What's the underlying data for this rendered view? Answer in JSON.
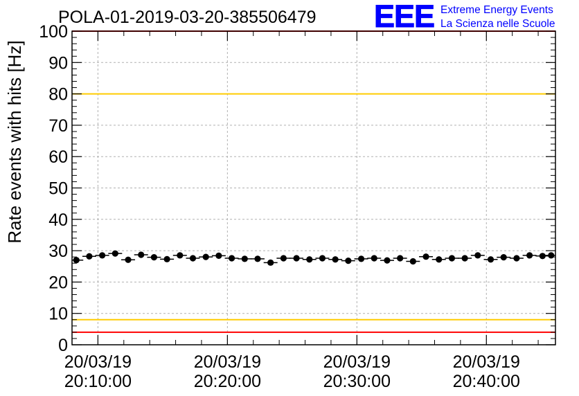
{
  "chart_data": {
    "type": "scatter",
    "title": "POLA-01-2019-03-20-385506479",
    "xlabel": "",
    "ylabel": "Rate events with hits [Hz]",
    "ylim": [
      0,
      100
    ],
    "xlim": [
      "2019-03-20 20:08:00",
      "2019-03-20 20:45:20"
    ],
    "y_ticks": [
      "0",
      "10",
      "20",
      "30",
      "40",
      "50",
      "60",
      "70",
      "80",
      "90",
      "100"
    ],
    "x_ticks": [
      {
        "date": "20/03/19",
        "time": "20:10:00"
      },
      {
        "date": "20/03/19",
        "time": "20:20:00"
      },
      {
        "date": "20/03/19",
        "time": "20:30:00"
      },
      {
        "date": "20/03/19",
        "time": "20:40:00"
      }
    ],
    "grid": true,
    "reference_lines": [
      {
        "y": 100,
        "color": "#ff0000"
      },
      {
        "y": 80,
        "color": "#ffcc00"
      },
      {
        "y": 8,
        "color": "#ffcc00"
      },
      {
        "y": 4,
        "color": "#ff0000"
      }
    ],
    "series": [
      {
        "color": "#000000",
        "x": [
          "20:08:20",
          "20:09:20",
          "20:10:20",
          "20:11:20",
          "20:12:20",
          "20:13:20",
          "20:14:20",
          "20:15:20",
          "20:16:20",
          "20:17:20",
          "20:18:20",
          "20:19:20",
          "20:20:20",
          "20:21:20",
          "20:22:20",
          "20:23:20",
          "20:24:20",
          "20:25:20",
          "20:26:20",
          "20:27:20",
          "20:28:20",
          "20:29:20",
          "20:30:20",
          "20:31:20",
          "20:32:20",
          "20:33:20",
          "20:34:20",
          "20:35:20",
          "20:36:20",
          "20:37:20",
          "20:38:20",
          "20:39:20",
          "20:40:20",
          "20:41:20",
          "20:42:20",
          "20:43:20",
          "20:44:20",
          "20:45:00"
        ],
        "y": [
          27.0,
          28.2,
          28.5,
          29.1,
          27.1,
          28.7,
          27.9,
          27.3,
          28.5,
          27.6,
          28.0,
          28.4,
          27.6,
          27.4,
          27.4,
          26.2,
          27.6,
          27.6,
          27.2,
          27.6,
          27.2,
          26.8,
          27.4,
          27.6,
          26.9,
          27.6,
          26.6,
          28.1,
          27.2,
          27.6,
          27.6,
          28.5,
          27.2,
          27.9,
          27.6,
          28.5,
          28.3,
          28.5
        ]
      }
    ]
  },
  "logo": {
    "mark": "EEE",
    "line1": "Extreme Energy Events",
    "line2": "La Scienza nelle Scuole",
    "color": "#0000ff"
  }
}
